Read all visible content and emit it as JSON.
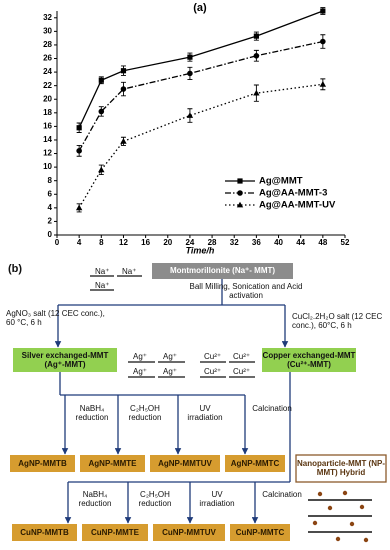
{
  "chart_data": {
    "type": "line",
    "title": "(a)",
    "xlabel": "Time/h",
    "x": [
      4,
      8,
      12,
      24,
      36,
      48
    ],
    "series": [
      {
        "name": "Ag@MMT",
        "color": "#000000",
        "marker": "square",
        "dash": "solid",
        "values": [
          15.8,
          22.8,
          24.2,
          26.2,
          29.3,
          33.0
        ],
        "errors": [
          0.7,
          0.5,
          0.7,
          0.6,
          0.6,
          0.5
        ]
      },
      {
        "name": "Ag@AA-MMT-3",
        "color": "#000000",
        "marker": "circle",
        "dash": "dashdot",
        "values": [
          12.4,
          18.2,
          21.5,
          23.8,
          26.4,
          28.5
        ],
        "errors": [
          0.8,
          0.7,
          1.0,
          0.9,
          0.8,
          1.0
        ]
      },
      {
        "name": "Ag@AA-MMT-UV",
        "color": "#000000",
        "marker": "triangle",
        "dash": "dotted",
        "values": [
          4.0,
          9.6,
          13.8,
          17.6,
          20.9,
          22.2
        ],
        "errors": [
          0.6,
          0.7,
          0.6,
          1.0,
          1.2,
          0.8
        ]
      }
    ],
    "xlim": [
      0,
      52
    ],
    "xticks": [
      0,
      4,
      8,
      12,
      16,
      20,
      24,
      28,
      32,
      36,
      40,
      44,
      48,
      52
    ],
    "ylim": [
      0,
      33
    ],
    "yticks": [
      0,
      2,
      4,
      6,
      8,
      10,
      12,
      14,
      16,
      18,
      20,
      22,
      24,
      26,
      28,
      30,
      32
    ],
    "legend": "lower right",
    "grid": false
  },
  "diagram": {
    "label": "(b)",
    "na_ions": [
      "Na⁺",
      "Na⁺",
      "Na⁺"
    ],
    "source": "Montmorillonite (Na⁺- MMT)",
    "activation": "Ball Milling, Sonication and Acid activation",
    "silver_conditions": "AgNO₃ salt (12 CEC conc.), 60 °C, 6 h",
    "copper_conditions": "CuCl₂.2H₂O salt (12 CEC conc.), 60°C, 6 h",
    "silver_exchanged": "Silver exchanged-MMT (Ag⁺-MMT)",
    "copper_exchanged": "Copper exchanged-MMT (Cu²⁺-MMT)",
    "ag_ions": [
      "Ag⁺",
      "Ag⁺",
      "Ag⁺",
      "Ag⁺"
    ],
    "cu_ions": [
      "Cu²⁺",
      "Cu²⁺",
      "Cu²⁺",
      "Cu²⁺"
    ],
    "silver_treatments": [
      "NaBH₄ reduction",
      "C₂H₅OH reduction",
      "UV irradiation",
      "Calcination"
    ],
    "silver_products": [
      "AgNP-MMTB",
      "AgNP-MMTE",
      "AgNP-MMTUV",
      "AgNP-MMTC"
    ],
    "copper_treatments": [
      "NaBH₄ reduction",
      "C₂H₅OH reduction",
      "UV irradiation",
      "Calcination"
    ],
    "copper_products": [
      "CuNP-MMTB",
      "CuNP-MMTE",
      "CuNP-MMTUV",
      "CuNP-MMTC"
    ],
    "hybrid": "Nanoparticle-MMT (NP-MMT) Hybrid"
  }
}
